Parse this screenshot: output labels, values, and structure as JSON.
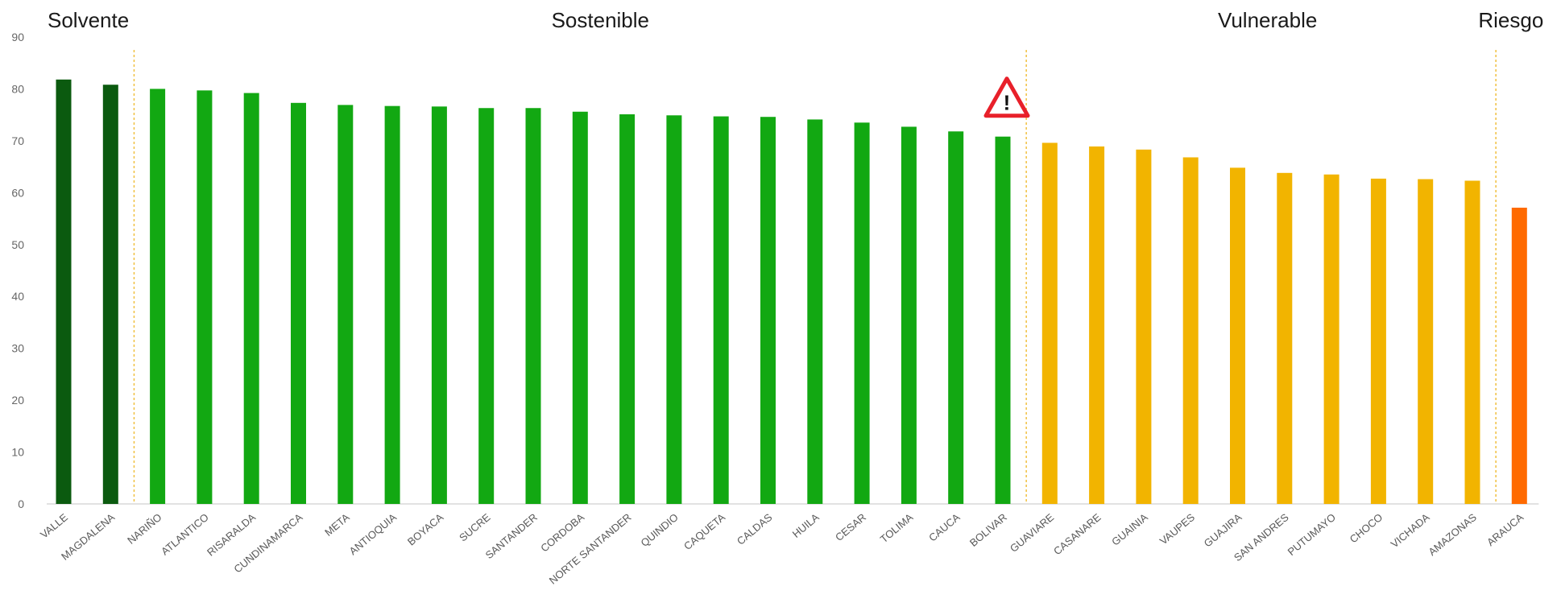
{
  "chart_data": {
    "type": "bar",
    "title": "",
    "xlabel": "",
    "ylabel": "",
    "ylim": [
      0,
      90
    ],
    "yticks": [
      0,
      10,
      20,
      30,
      40,
      50,
      60,
      70,
      80,
      90
    ],
    "grid": false,
    "categories": [
      "VALLE",
      "MAGDALENA",
      "NARIÑO",
      "ATLANTICO",
      "RISARALDA",
      "CUNDINAMARCA",
      "META",
      "ANTIOQUIA",
      "BOYACA",
      "SUCRE",
      "SANTANDER",
      "CORDOBA",
      "NORTE SANTANDER",
      "QUINDIO",
      "CAQUETA",
      "CALDAS",
      "HUILA",
      "CESAR",
      "TOLIMA",
      "CAUCA",
      "BOLIVAR",
      "GUAVIARE",
      "CASANARE",
      "GUAINIA",
      "VAUPES",
      "GUAJIRA",
      "SAN ANDRES",
      "PUTUMAYO",
      "CHOCO",
      "VICHADA",
      "AMAZONAS",
      "ARAUCA"
    ],
    "values": [
      81.8,
      80.8,
      80.0,
      79.7,
      79.2,
      77.3,
      76.9,
      76.7,
      76.6,
      76.3,
      76.3,
      75.6,
      75.1,
      74.9,
      74.7,
      74.6,
      74.1,
      73.5,
      72.7,
      71.8,
      70.8,
      69.6,
      68.9,
      68.3,
      66.8,
      64.8,
      63.8,
      63.5,
      62.7,
      62.6,
      62.3,
      57.1
    ],
    "bar_groups": [
      "Solvente",
      "Solvente",
      "Sostenible",
      "Sostenible",
      "Sostenible",
      "Sostenible",
      "Sostenible",
      "Sostenible",
      "Sostenible",
      "Sostenible",
      "Sostenible",
      "Sostenible",
      "Sostenible",
      "Sostenible",
      "Sostenible",
      "Sostenible",
      "Sostenible",
      "Sostenible",
      "Sostenible",
      "Sostenible",
      "Sostenible",
      "Vulnerable",
      "Vulnerable",
      "Vulnerable",
      "Vulnerable",
      "Vulnerable",
      "Vulnerable",
      "Vulnerable",
      "Vulnerable",
      "Vulnerable",
      "Vulnerable",
      "Riesgo"
    ],
    "groups": [
      {
        "name": "Solvente",
        "color": "#0b5a0f"
      },
      {
        "name": "Sostenible",
        "color": "#12a812"
      },
      {
        "name": "Vulnerable",
        "color": "#f2b400"
      },
      {
        "name": "Riesgo",
        "color": "#ff6a00"
      }
    ],
    "separator_color": "#f0c040",
    "warning_marker": {
      "category": "BOLIVAR",
      "icon": "warning-triangle-icon",
      "symbol": "!",
      "color": "#e8202a"
    }
  }
}
